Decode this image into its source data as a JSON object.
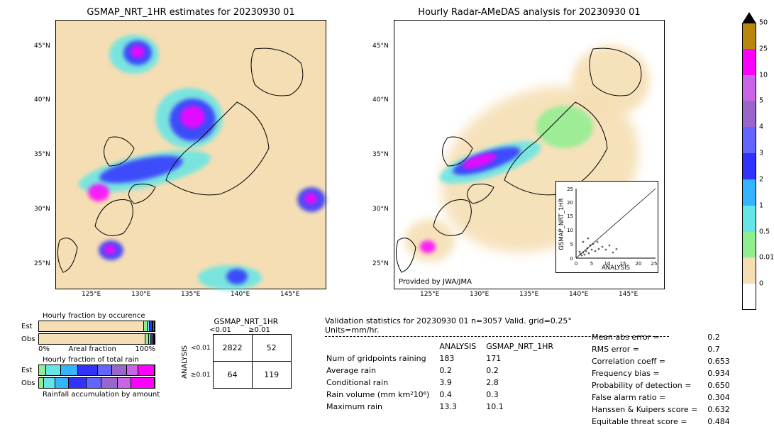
{
  "colorbar": {
    "ticks": [
      "50",
      "25",
      "10",
      "5",
      "4",
      "3",
      "2",
      "1",
      "0.5",
      "0.01",
      "0"
    ],
    "colors": [
      "#b8860b",
      "#ff00ff",
      "#c864e6",
      "#9966cc",
      "#6464ff",
      "#3232ff",
      "#32b4ff",
      "#64e6e6",
      "#90ee90",
      "#f5deb3",
      "#ffffff"
    ]
  },
  "left_map": {
    "title": "GSMAP_NRT_1HR estimates for 20230930 01",
    "lon_ticks": [
      "125°E",
      "130°E",
      "135°E",
      "140°E",
      "145°E"
    ],
    "lat_ticks": [
      "45°N",
      "40°N",
      "35°N",
      "30°N",
      "25°N"
    ]
  },
  "right_map": {
    "title": "Hourly Radar-AMeDAS analysis for 20230930 01",
    "caption": "Provided by JWA/JMA",
    "lon_ticks": [
      "125°E",
      "130°E",
      "135°E",
      "140°E",
      "145°E"
    ],
    "lat_ticks": [
      "45°N",
      "40°N",
      "35°N",
      "30°N",
      "25°N"
    ]
  },
  "scatter_inset": {
    "xlabel": "ANALYSIS",
    "ylabel": "GSMAP_NRT_1HR",
    "xlim": [
      0,
      25
    ],
    "ylim": [
      0,
      25
    ],
    "xticks": [
      0,
      5,
      10,
      15,
      20,
      25
    ],
    "yticks": [
      0,
      5,
      10,
      15,
      20,
      25
    ]
  },
  "fraction_bars": {
    "occurrence_title": "Hourly fraction by occurence",
    "total_rain_title": "Hourly fraction of total rain",
    "accumulation_caption": "Rainfall accumulation by amount",
    "row_labels": [
      "Est",
      "Obs"
    ],
    "xaxis_left": "0%",
    "xaxis_label": "Areal fraction",
    "xaxis_right": "100%"
  },
  "contingency": {
    "col_header": "GSMAP_NRT_1HR",
    "row_header": "ANALYSIS",
    "cols": [
      "<0.01",
      "≥0.01"
    ],
    "rows": [
      "<0.01",
      "≥0.01"
    ],
    "cells": [
      [
        "2822",
        "52"
      ],
      [
        "64",
        "119"
      ]
    ]
  },
  "validation": {
    "header": "Validation statistics for 20230930 01  n=3057 Valid. grid=0.25° Units=mm/hr.",
    "cols": [
      "",
      "ANALYSIS",
      "GSMAP_NRT_1HR"
    ],
    "rows": [
      [
        "Num of gridpoints raining",
        "183",
        "171"
      ],
      [
        "Average rain",
        "0.2",
        "0.2"
      ],
      [
        "Conditional rain",
        "3.9",
        "2.8"
      ],
      [
        "Rain volume (mm km²10⁶)",
        "0.4",
        "0.3"
      ],
      [
        "Maximum rain",
        "13.3",
        "10.1"
      ]
    ]
  },
  "stats_right": [
    [
      "Mean abs error =",
      "0.2"
    ],
    [
      "RMS error =",
      "0.7"
    ],
    [
      "Correlation coeff =",
      "0.653"
    ],
    [
      "Frequency bias =",
      "0.934"
    ],
    [
      "Probability of detection =",
      "0.650"
    ],
    [
      "False alarm ratio =",
      "0.304"
    ],
    [
      "Hanssen & Kuipers score =",
      "0.632"
    ],
    [
      "Equitable threat score =",
      "0.484"
    ]
  ],
  "style": {
    "bg": "#ffffff",
    "land_bg": "#f5deb3",
    "text": "#000000",
    "fontsize_title": 13,
    "fontsize_tick": 10,
    "fontsize_body": 11
  },
  "occ_bars": {
    "est": [
      {
        "c": "#f5deb3",
        "w": 0.91
      },
      {
        "c": "#90ee90",
        "w": 0.03
      },
      {
        "c": "#64e6e6",
        "w": 0.02
      },
      {
        "c": "#3232ff",
        "w": 0.02
      },
      {
        "c": "#9966cc",
        "w": 0.01
      },
      {
        "c": "#ff00ff",
        "w": 0.01
      }
    ],
    "obs": [
      {
        "c": "#f5deb3",
        "w": 0.92
      },
      {
        "c": "#90ee90",
        "w": 0.03
      },
      {
        "c": "#64e6e6",
        "w": 0.02
      },
      {
        "c": "#3232ff",
        "w": 0.015
      },
      {
        "c": "#9966cc",
        "w": 0.01
      },
      {
        "c": "#ff00ff",
        "w": 0.005
      }
    ]
  },
  "tot_bars": {
    "est": [
      {
        "c": "#90ee90",
        "w": 0.06
      },
      {
        "c": "#64e6e6",
        "w": 0.13
      },
      {
        "c": "#32b4ff",
        "w": 0.15
      },
      {
        "c": "#3232ff",
        "w": 0.17
      },
      {
        "c": "#6464ff",
        "w": 0.12
      },
      {
        "c": "#9966cc",
        "w": 0.13
      },
      {
        "c": "#c864e6",
        "w": 0.1
      },
      {
        "c": "#ff00ff",
        "w": 0.14
      }
    ],
    "obs": [
      {
        "c": "#90ee90",
        "w": 0.04
      },
      {
        "c": "#64e6e6",
        "w": 0.1
      },
      {
        "c": "#32b4ff",
        "w": 0.12
      },
      {
        "c": "#3232ff",
        "w": 0.15
      },
      {
        "c": "#6464ff",
        "w": 0.13
      },
      {
        "c": "#9966cc",
        "w": 0.14
      },
      {
        "c": "#c864e6",
        "w": 0.12
      },
      {
        "c": "#ff00ff",
        "w": 0.2
      }
    ]
  }
}
